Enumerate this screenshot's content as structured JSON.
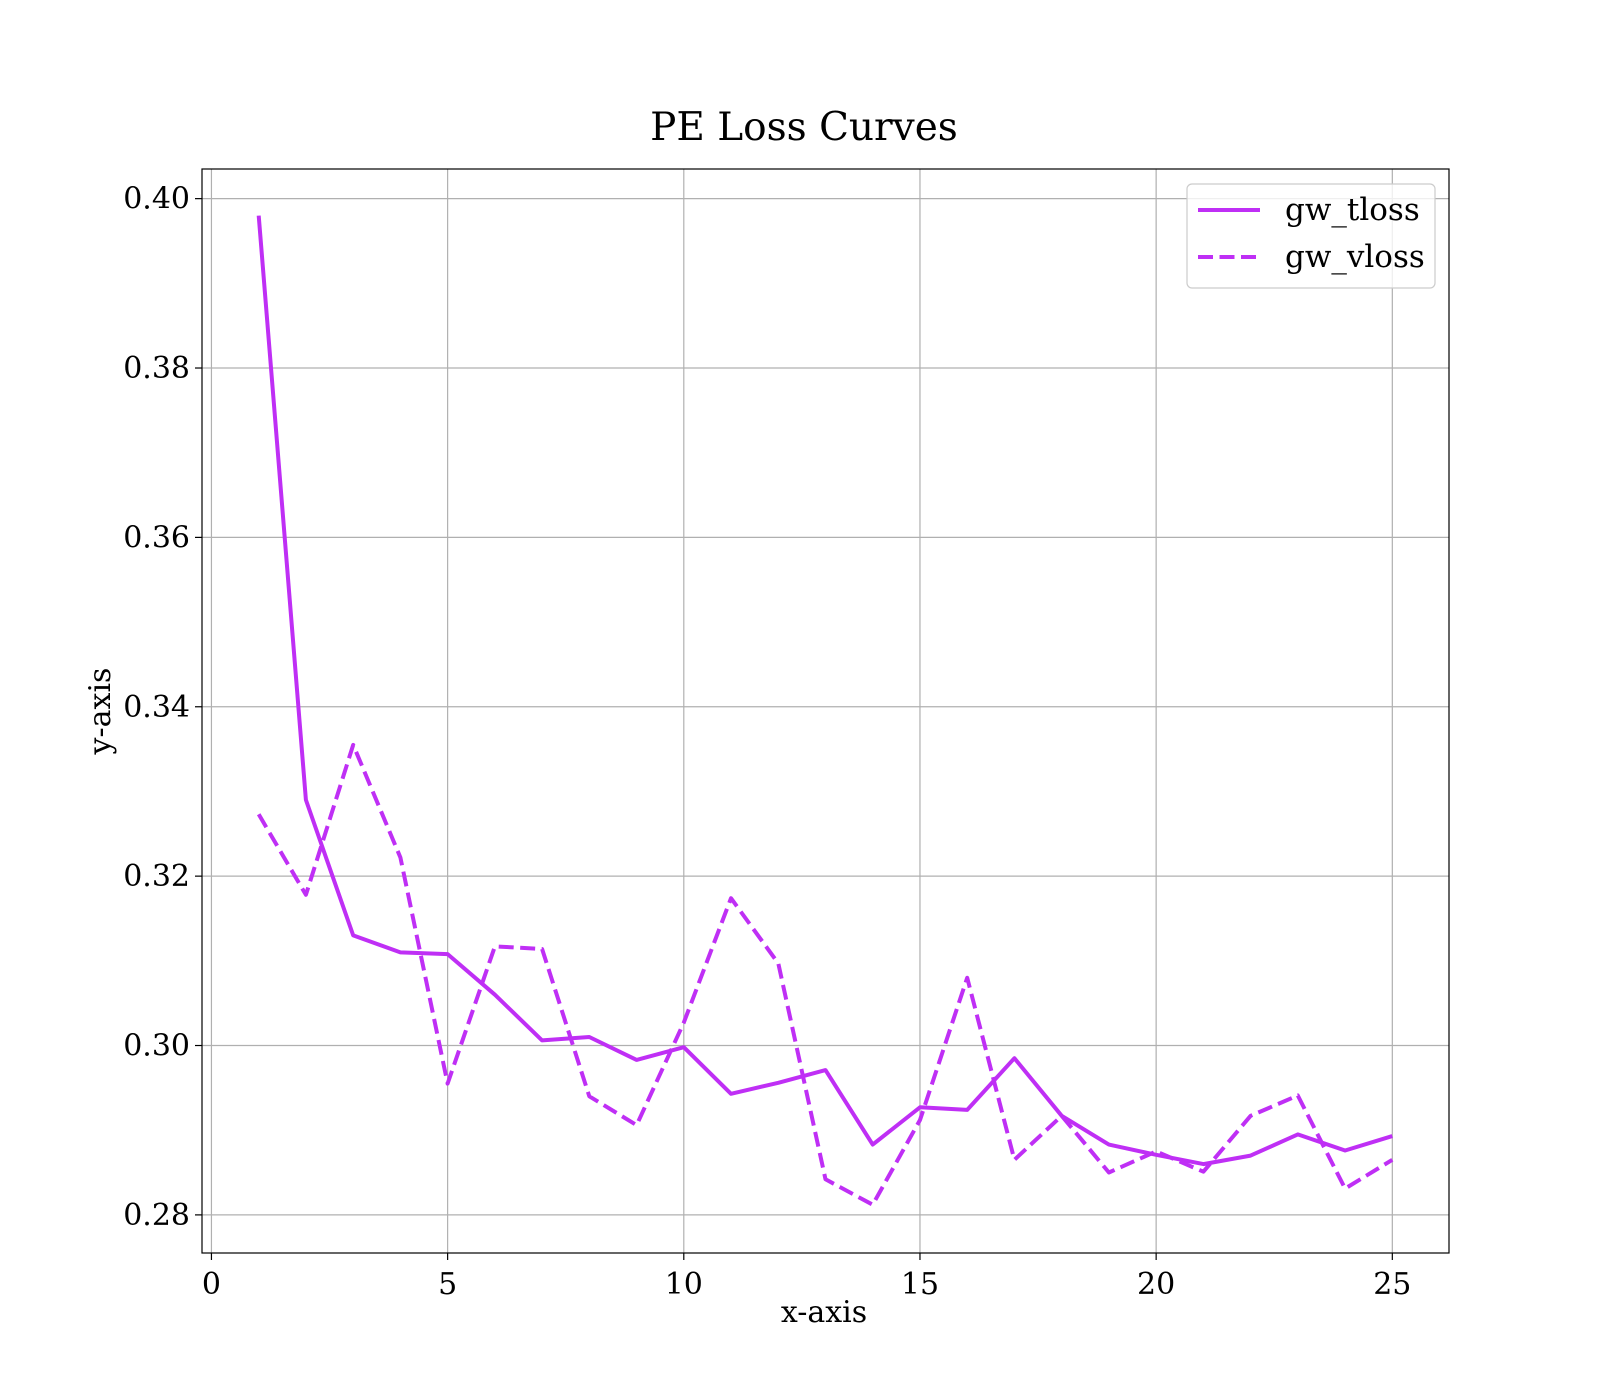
{
  "chart_data": {
    "type": "line",
    "title": "PE Loss Curves",
    "xlabel": "x-axis",
    "ylabel": "y-axis",
    "xlim": [
      -0.2,
      26.2
    ],
    "ylim": [
      0.2755,
      0.4035
    ],
    "xticks": [
      0,
      5,
      10,
      15,
      20,
      25
    ],
    "yticks": [
      0.28,
      0.3,
      0.32,
      0.34,
      0.36,
      0.38,
      0.4
    ],
    "xtick_labels": [
      "0",
      "5",
      "10",
      "15",
      "20",
      "25"
    ],
    "ytick_labels": [
      "0.28",
      "0.30",
      "0.32",
      "0.34",
      "0.36",
      "0.38",
      "0.40"
    ],
    "grid": true,
    "legend_position": "top-right",
    "x": [
      1,
      2,
      3,
      4,
      5,
      6,
      7,
      8,
      9,
      10,
      11,
      12,
      13,
      14,
      15,
      16,
      17,
      18,
      19,
      20,
      21,
      22,
      23,
      24,
      25
    ],
    "series": [
      {
        "name": "gw_tloss",
        "style": "solid",
        "color": "#bf2ff5",
        "values": [
          0.398,
          0.329,
          0.313,
          0.311,
          0.3108,
          0.306,
          0.3006,
          0.301,
          0.2983,
          0.2998,
          0.2943,
          0.2956,
          0.2971,
          0.2883,
          0.2927,
          0.2924,
          0.2985,
          0.2917,
          0.2883,
          0.2871,
          0.286,
          0.287,
          0.2895,
          0.2876,
          0.2893
        ]
      },
      {
        "name": "gw_vloss",
        "style": "dashed",
        "color": "#bf2ff5",
        "values": [
          0.3273,
          0.3178,
          0.3355,
          0.3222,
          0.2955,
          0.3117,
          0.3114,
          0.294,
          0.2906,
          0.3027,
          0.3174,
          0.3097,
          0.2842,
          0.2812,
          0.2912,
          0.308,
          0.2865,
          0.2917,
          0.285,
          0.2875,
          0.2851,
          0.2917,
          0.2941,
          0.2831,
          0.2865
        ]
      }
    ]
  }
}
